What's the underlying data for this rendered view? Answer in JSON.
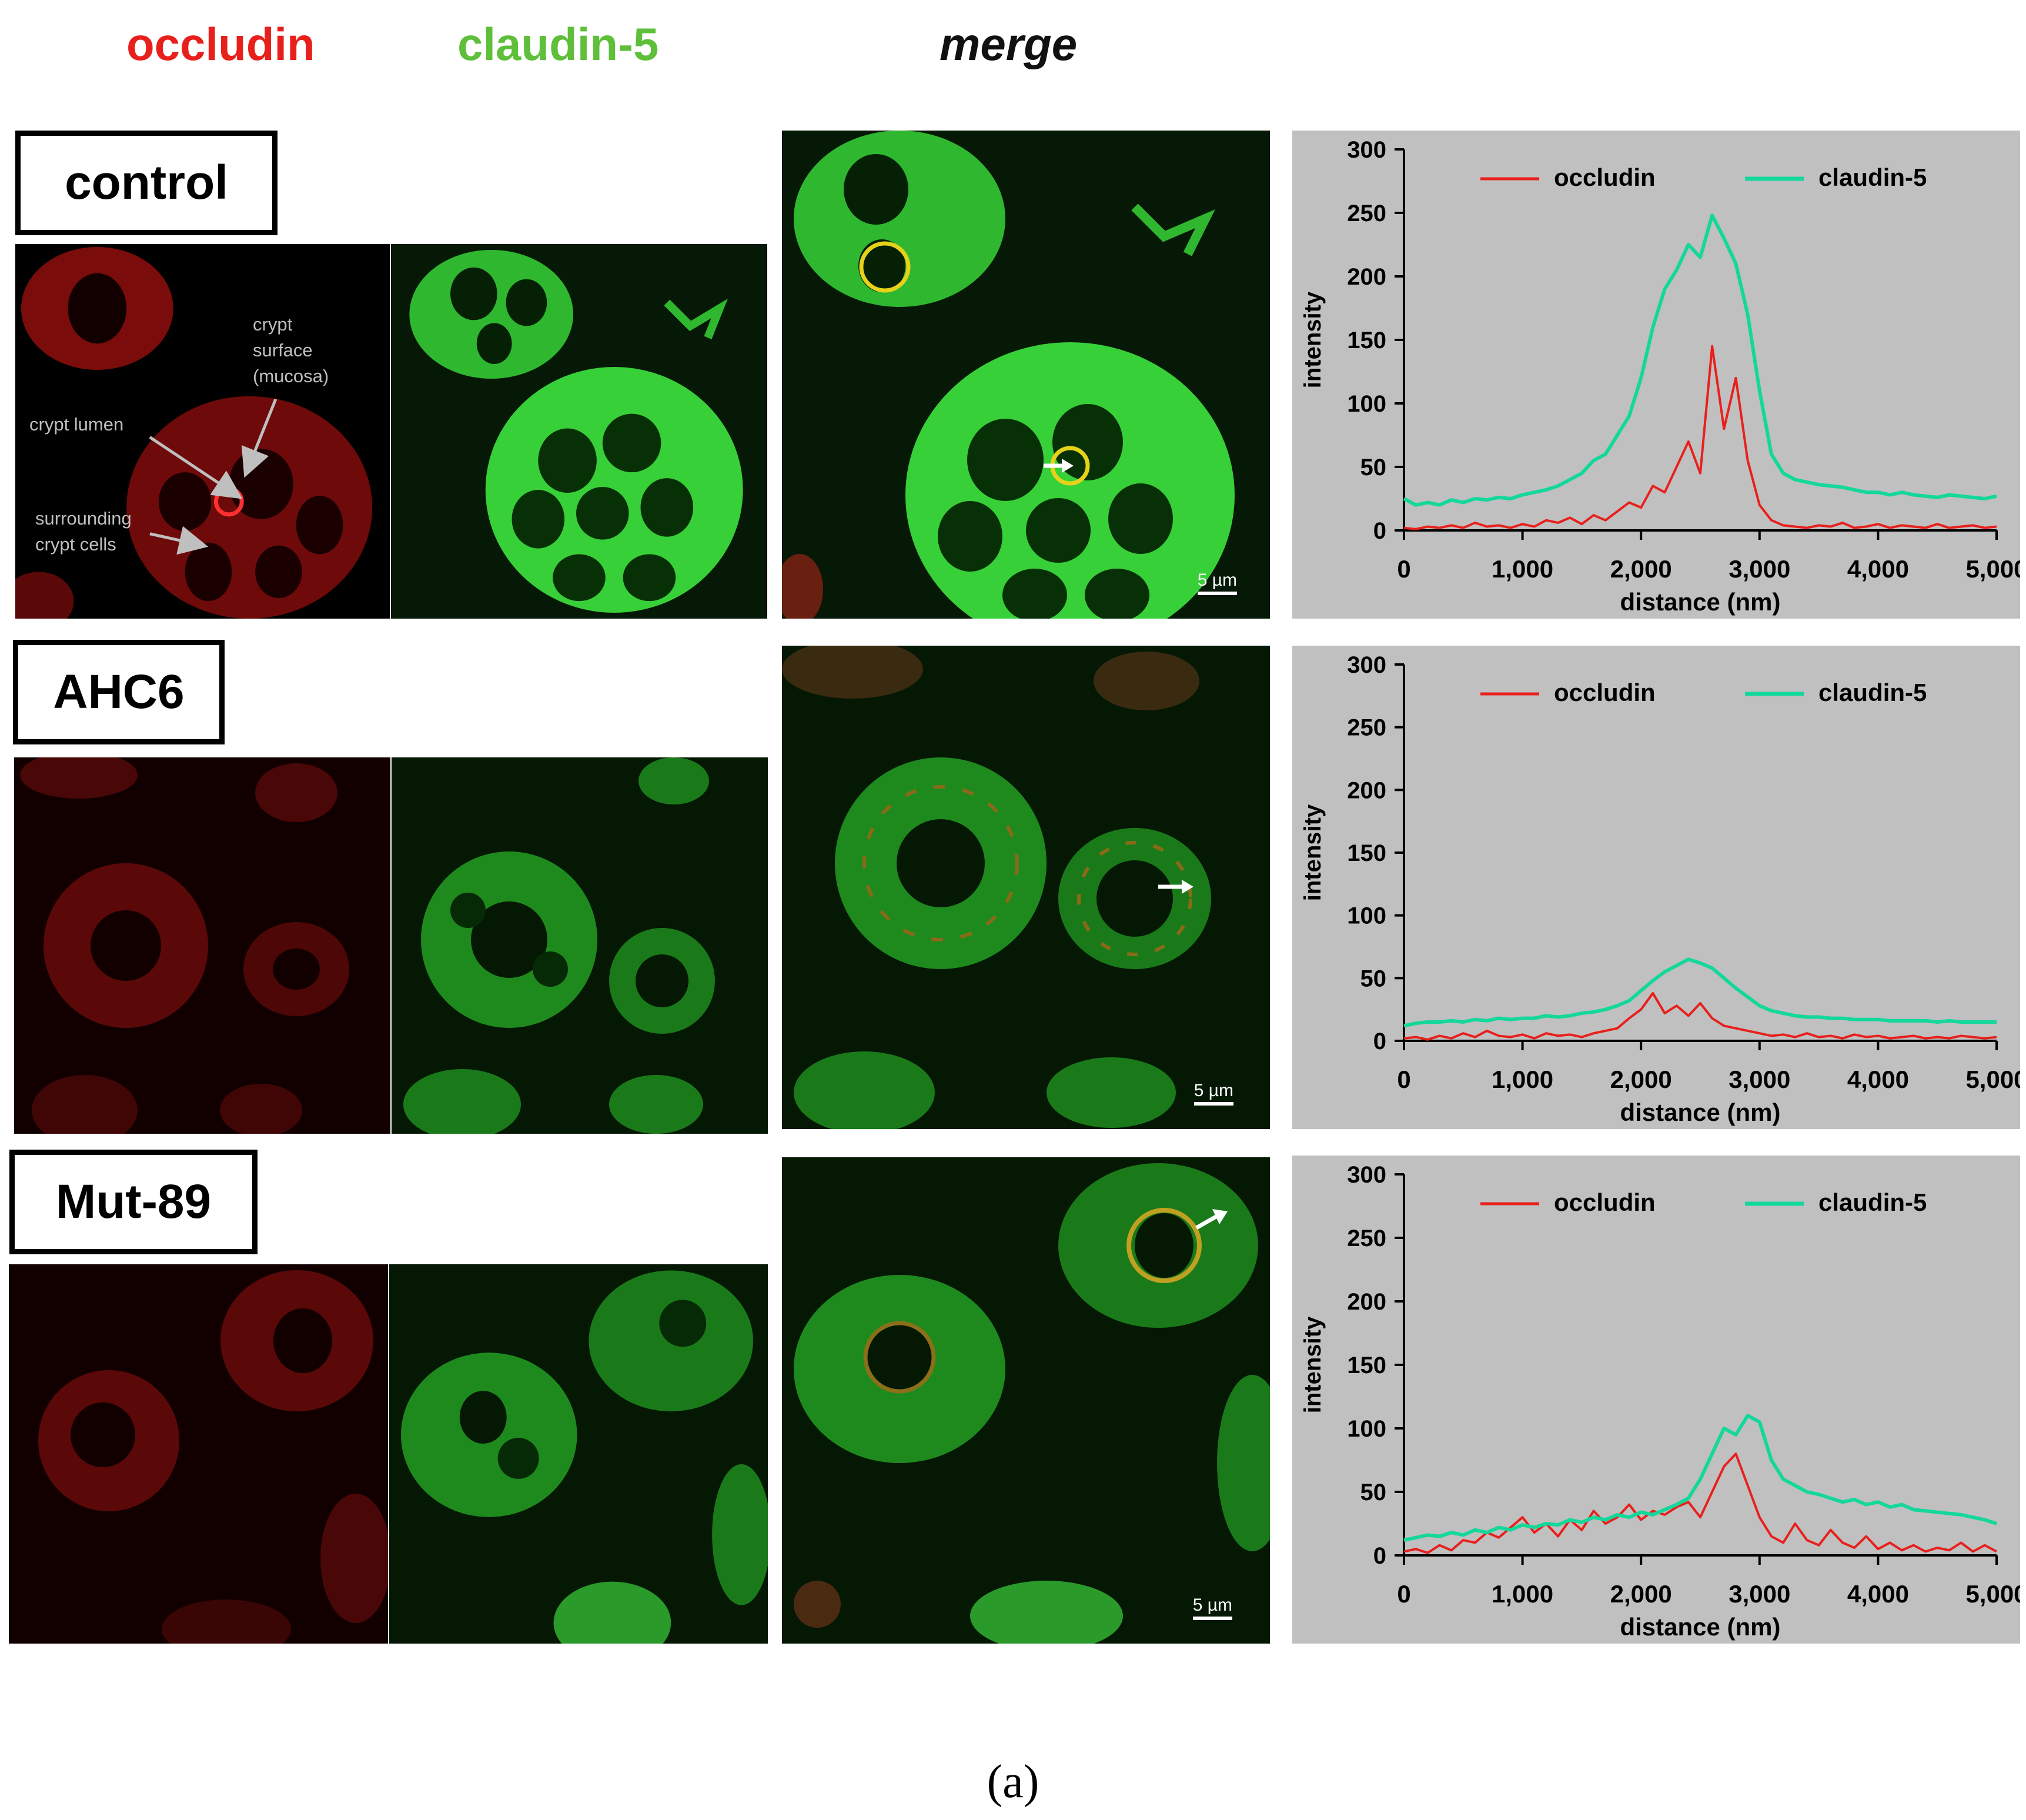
{
  "headers": {
    "occludin": "occludin",
    "claudin": "claudin-5",
    "merge": "merge"
  },
  "rows": [
    {
      "label": "control",
      "scale_bar": "5 µm"
    },
    {
      "label": "AHC6",
      "scale_bar": "5 µm"
    },
    {
      "label": "Mut-89",
      "scale_bar": "5 µm"
    }
  ],
  "annotations": {
    "crypt_surface": [
      "crypt",
      "surface",
      "(mucosa)"
    ],
    "crypt_lumen": "crypt lumen",
    "surrounding": [
      "surrounding",
      "crypt cells"
    ]
  },
  "caption": "(a)",
  "colors": {
    "occludin": "#e8201c",
    "claudin": "#14d79a",
    "plot_bg": "#c0c0c0"
  },
  "chart_data": [
    {
      "type": "line",
      "panel": "control",
      "xlabel": "distance (nm)",
      "ylabel": "intensity",
      "xlim": [
        0,
        5000
      ],
      "ylim": [
        0,
        300
      ],
      "xticks": [
        "0",
        "1,000",
        "2,000",
        "3,000",
        "4,000",
        "5,000"
      ],
      "yticks": [
        "0",
        "50",
        "100",
        "150",
        "200",
        "250",
        "300"
      ],
      "x": [
        0,
        100,
        200,
        300,
        400,
        500,
        600,
        700,
        800,
        900,
        1000,
        1100,
        1200,
        1300,
        1400,
        1500,
        1600,
        1700,
        1800,
        1900,
        2000,
        2100,
        2200,
        2300,
        2400,
        2500,
        2600,
        2700,
        2800,
        2900,
        3000,
        3100,
        3200,
        3300,
        3400,
        3500,
        3600,
        3700,
        3800,
        3900,
        4000,
        4100,
        4200,
        4300,
        4400,
        4500,
        4600,
        4700,
        4800,
        4900,
        5000
      ],
      "series": [
        {
          "name": "occludin",
          "color": "#e8201c",
          "values": [
            2,
            1,
            3,
            2,
            4,
            2,
            6,
            3,
            4,
            2,
            5,
            3,
            8,
            6,
            10,
            5,
            12,
            8,
            15,
            22,
            18,
            35,
            30,
            50,
            70,
            45,
            145,
            80,
            120,
            55,
            20,
            8,
            4,
            3,
            2,
            4,
            3,
            6,
            2,
            3,
            5,
            2,
            4,
            3,
            2,
            5,
            2,
            3,
            4,
            2,
            3
          ]
        },
        {
          "name": "claudin-5",
          "color": "#14d79a",
          "values": [
            25,
            20,
            22,
            20,
            24,
            22,
            25,
            24,
            26,
            25,
            28,
            30,
            32,
            35,
            40,
            45,
            55,
            60,
            75,
            90,
            120,
            160,
            190,
            205,
            225,
            215,
            248,
            230,
            210,
            170,
            110,
            60,
            45,
            40,
            38,
            36,
            35,
            34,
            32,
            30,
            30,
            28,
            30,
            28,
            27,
            26,
            28,
            27,
            26,
            25,
            27
          ]
        }
      ]
    },
    {
      "type": "line",
      "panel": "AHC6",
      "xlabel": "distance (nm)",
      "ylabel": "intensity",
      "xlim": [
        0,
        5000
      ],
      "ylim": [
        0,
        300
      ],
      "xticks": [
        "0",
        "1,000",
        "2,000",
        "3,000",
        "4,000",
        "5,000"
      ],
      "yticks": [
        "0",
        "50",
        "100",
        "150",
        "200",
        "250",
        "300"
      ],
      "x": [
        0,
        100,
        200,
        300,
        400,
        500,
        600,
        700,
        800,
        900,
        1000,
        1100,
        1200,
        1300,
        1400,
        1500,
        1600,
        1700,
        1800,
        1900,
        2000,
        2100,
        2200,
        2300,
        2400,
        2500,
        2600,
        2700,
        2800,
        2900,
        3000,
        3100,
        3200,
        3300,
        3400,
        3500,
        3600,
        3700,
        3800,
        3900,
        4000,
        4100,
        4200,
        4300,
        4400,
        4500,
        4600,
        4700,
        4800,
        4900,
        5000
      ],
      "series": [
        {
          "name": "occludin",
          "color": "#e8201c",
          "values": [
            2,
            3,
            1,
            4,
            2,
            6,
            3,
            8,
            4,
            3,
            5,
            2,
            6,
            4,
            5,
            3,
            6,
            8,
            10,
            18,
            25,
            38,
            22,
            28,
            20,
            30,
            18,
            12,
            10,
            8,
            6,
            4,
            5,
            3,
            6,
            3,
            4,
            2,
            5,
            3,
            4,
            2,
            3,
            4,
            2,
            3,
            2,
            4,
            3,
            2,
            3
          ]
        },
        {
          "name": "claudin-5",
          "color": "#14d79a",
          "values": [
            12,
            14,
            15,
            15,
            16,
            15,
            17,
            16,
            18,
            17,
            18,
            18,
            20,
            19,
            20,
            22,
            23,
            25,
            28,
            32,
            40,
            48,
            55,
            60,
            65,
            62,
            58,
            50,
            42,
            35,
            28,
            24,
            22,
            20,
            19,
            19,
            18,
            18,
            17,
            17,
            17,
            16,
            16,
            16,
            16,
            15,
            16,
            15,
            15,
            15,
            15
          ]
        }
      ]
    },
    {
      "type": "line",
      "panel": "Mut-89",
      "xlabel": "distance (nm)",
      "ylabel": "intensity",
      "xlim": [
        0,
        5000
      ],
      "ylim": [
        0,
        300
      ],
      "xticks": [
        "0",
        "1,000",
        "2,000",
        "3,000",
        "4,000",
        "5,000"
      ],
      "yticks": [
        "0",
        "50",
        "100",
        "150",
        "200",
        "250",
        "300"
      ],
      "x": [
        0,
        100,
        200,
        300,
        400,
        500,
        600,
        700,
        800,
        900,
        1000,
        1100,
        1200,
        1300,
        1400,
        1500,
        1600,
        1700,
        1800,
        1900,
        2000,
        2100,
        2200,
        2300,
        2400,
        2500,
        2600,
        2700,
        2800,
        2900,
        3000,
        3100,
        3200,
        3300,
        3400,
        3500,
        3600,
        3700,
        3800,
        3900,
        4000,
        4100,
        4200,
        4300,
        4400,
        4500,
        4600,
        4700,
        4800,
        4900,
        5000
      ],
      "series": [
        {
          "name": "occludin",
          "color": "#e8201c",
          "values": [
            3,
            5,
            2,
            8,
            4,
            12,
            10,
            18,
            14,
            22,
            30,
            18,
            25,
            15,
            28,
            20,
            35,
            25,
            30,
            40,
            28,
            35,
            32,
            38,
            42,
            30,
            50,
            70,
            80,
            55,
            30,
            15,
            10,
            25,
            12,
            8,
            20,
            10,
            6,
            15,
            5,
            10,
            4,
            8,
            3,
            6,
            4,
            10,
            3,
            8,
            3
          ]
        },
        {
          "name": "claudin-5",
          "color": "#14d79a",
          "values": [
            12,
            14,
            16,
            15,
            18,
            16,
            20,
            18,
            22,
            20,
            24,
            22,
            25,
            24,
            28,
            26,
            30,
            28,
            32,
            30,
            34,
            32,
            36,
            40,
            45,
            60,
            80,
            100,
            95,
            110,
            105,
            75,
            60,
            55,
            50,
            48,
            45,
            42,
            44,
            40,
            42,
            38,
            40,
            36,
            35,
            34,
            33,
            32,
            30,
            28,
            25
          ]
        }
      ]
    }
  ]
}
